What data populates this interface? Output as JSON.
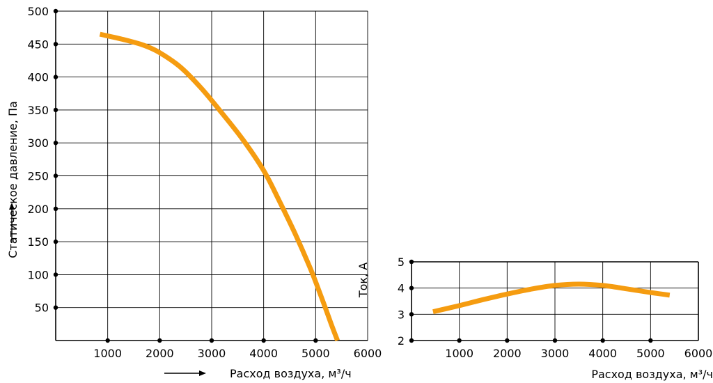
{
  "colors": {
    "curve": "#F59C10",
    "axis": "#000000"
  },
  "chart_data": [
    {
      "type": "line",
      "title": "",
      "xlabel": "Расход воздуха, м³/ч",
      "ylabel": "Статическое давление, Па",
      "xlim": [
        0,
        6000
      ],
      "ylim": [
        0,
        500
      ],
      "x_ticks": [
        1000,
        2000,
        3000,
        4000,
        5000,
        6000
      ],
      "y_ticks": [
        50,
        100,
        150,
        200,
        250,
        300,
        350,
        400,
        450,
        500
      ],
      "x_tick_labels": [
        "1000",
        "2000",
        "3000",
        "4000",
        "5000",
        "6000"
      ],
      "y_tick_labels": [
        "50",
        "100",
        "150",
        "200",
        "250",
        "300",
        "350",
        "400",
        "450",
        "500"
      ],
      "grid": true,
      "series": [
        {
          "x": [
            850,
            1300,
            1700,
            2000,
            2400,
            2800,
            3200,
            3600,
            4000,
            4300,
            4600,
            4900,
            5100,
            5300,
            5420
          ],
          "y": [
            465,
            457,
            448,
            437,
            415,
            383,
            345,
            305,
            258,
            212,
            163,
            109,
            68,
            25,
            0
          ]
        }
      ]
    },
    {
      "type": "line",
      "title": "",
      "xlabel": "Расход воздуха, м³/ч",
      "ylabel": "Ток, А",
      "xlim": [
        0,
        6000
      ],
      "ylim": [
        2,
        5
      ],
      "x_ticks": [
        1000,
        2000,
        3000,
        4000,
        5000,
        6000
      ],
      "y_ticks": [
        2,
        3,
        4,
        5
      ],
      "x_tick_labels": [
        "1000",
        "2000",
        "3000",
        "4000",
        "5000",
        "6000"
      ],
      "y_tick_labels": [
        "2",
        "3",
        "4",
        "5"
      ],
      "grid": true,
      "series": [
        {
          "x": [
            450,
            1000,
            1500,
            2000,
            2500,
            3000,
            3500,
            4000,
            4500,
            5000,
            5400
          ],
          "y": [
            3.1,
            3.33,
            3.56,
            3.77,
            3.96,
            4.1,
            4.15,
            4.1,
            3.97,
            3.83,
            3.73
          ]
        }
      ]
    }
  ]
}
